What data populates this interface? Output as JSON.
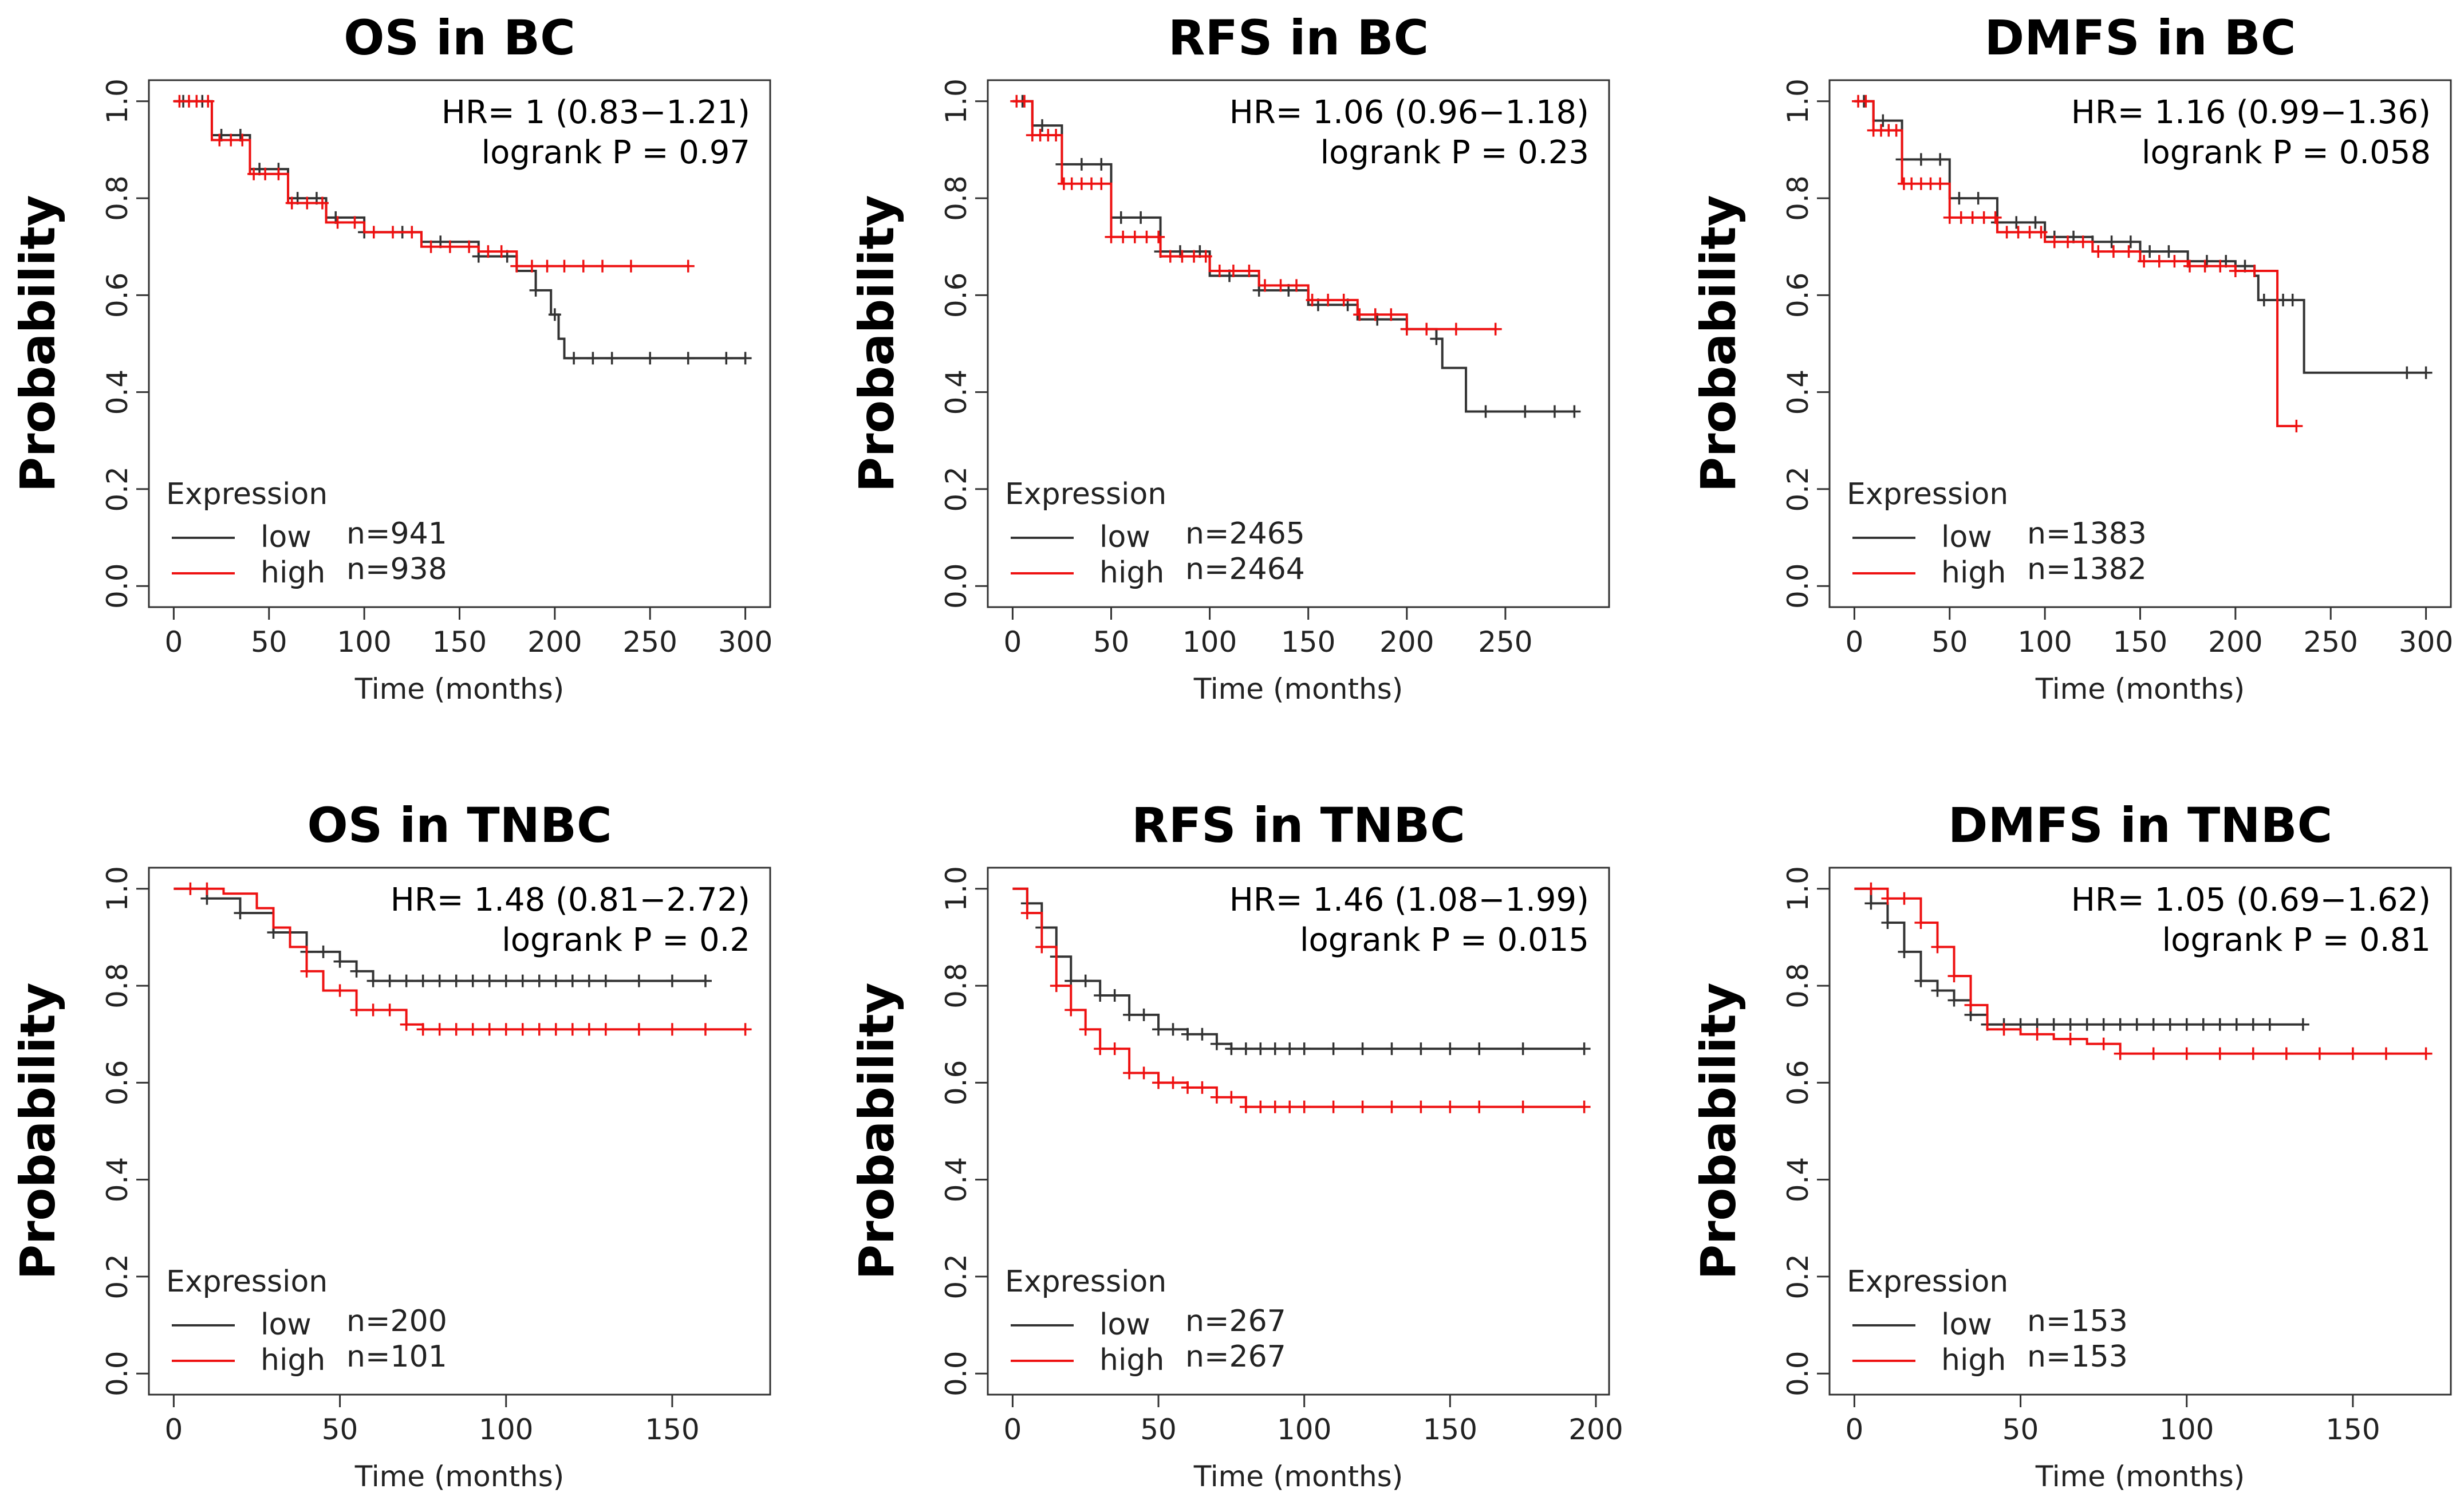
{
  "chart_data": [
    {
      "type": "line",
      "title": "OS in BC",
      "xlabel": "Time (months)",
      "ylabel": "Probability",
      "xlim": [
        0,
        300
      ],
      "ylim": [
        0,
        1
      ],
      "xticks": [
        0,
        50,
        100,
        150,
        200,
        250,
        300
      ],
      "xtick_labels": [
        "0",
        "50",
        "100",
        "150",
        "200",
        "250",
        "300"
      ],
      "yticks": [
        0,
        0.2,
        0.4,
        0.6,
        0.8,
        1.0
      ],
      "ytick_labels": [
        "0.0",
        "0.2",
        "0.4",
        "0.6",
        "0.8",
        "1.0"
      ],
      "hr_text": "HR= 1 (0.83−1.21)",
      "p_text": "logrank P = 0.97",
      "legend_title": "Expression",
      "series": [
        {
          "name": "low",
          "label": "low",
          "n_text": "n=941",
          "color": "#333333",
          "x": [
            0,
            20,
            40,
            60,
            80,
            100,
            130,
            160,
            180,
            190,
            198,
            202,
            205,
            300
          ],
          "y": [
            1.0,
            0.93,
            0.86,
            0.8,
            0.76,
            0.73,
            0.71,
            0.68,
            0.65,
            0.61,
            0.56,
            0.51,
            0.47,
            0.47
          ],
          "cens_x": [
            5,
            15,
            25,
            35,
            45,
            55,
            65,
            75,
            85,
            100,
            120,
            140,
            160,
            175,
            190,
            200,
            210,
            220,
            230,
            250,
            270,
            290,
            300
          ]
        },
        {
          "name": "high",
          "label": "high",
          "n_text": "n=938",
          "color": "#ee1111",
          "x": [
            0,
            20,
            40,
            60,
            80,
            100,
            130,
            160,
            180,
            270
          ],
          "y": [
            1.0,
            0.92,
            0.85,
            0.79,
            0.75,
            0.73,
            0.7,
            0.69,
            0.66,
            0.66
          ],
          "cens_x": [
            3,
            8,
            12,
            18,
            24,
            30,
            36,
            42,
            48,
            55,
            62,
            70,
            78,
            86,
            95,
            105,
            115,
            125,
            135,
            145,
            155,
            165,
            172,
            180,
            188,
            196,
            205,
            215,
            225,
            240,
            270
          ]
        }
      ]
    },
    {
      "type": "line",
      "title": "RFS in BC",
      "xlabel": "Time (months)",
      "ylabel": "Probability",
      "xlim": [
        0,
        290
      ],
      "ylim": [
        0,
        1
      ],
      "xticks": [
        0,
        50,
        100,
        150,
        200,
        250
      ],
      "xtick_labels": [
        "0",
        "50",
        "100",
        "150",
        "200",
        "250"
      ],
      "yticks": [
        0,
        0.2,
        0.4,
        0.6,
        0.8,
        1.0
      ],
      "ytick_labels": [
        "0.0",
        "0.2",
        "0.4",
        "0.6",
        "0.8",
        "1.0"
      ],
      "hr_text": "HR= 1.06 (0.96−1.18)",
      "p_text": "logrank P = 0.23",
      "legend_title": "Expression",
      "series": [
        {
          "name": "low",
          "label": "low",
          "n_text": "n=2465",
          "color": "#333333",
          "x": [
            0,
            10,
            25,
            50,
            75,
            100,
            125,
            150,
            175,
            200,
            215,
            218,
            228,
            230,
            285
          ],
          "y": [
            1.0,
            0.95,
            0.87,
            0.76,
            0.69,
            0.64,
            0.61,
            0.58,
            0.55,
            0.53,
            0.51,
            0.45,
            0.45,
            0.36,
            0.36
          ],
          "cens_x": [
            5,
            15,
            25,
            35,
            45,
            55,
            65,
            75,
            85,
            95,
            110,
            125,
            140,
            155,
            170,
            185,
            200,
            215,
            240,
            260,
            275,
            285
          ]
        },
        {
          "name": "high",
          "label": "high",
          "n_text": "n=2464",
          "color": "#ee1111",
          "x": [
            0,
            10,
            25,
            50,
            75,
            100,
            125,
            150,
            175,
            200,
            245
          ],
          "y": [
            1.0,
            0.93,
            0.83,
            0.72,
            0.68,
            0.65,
            0.62,
            0.59,
            0.56,
            0.53,
            0.53
          ],
          "cens_x": [
            2,
            6,
            10,
            14,
            18,
            22,
            26,
            30,
            35,
            40,
            45,
            50,
            56,
            62,
            68,
            74,
            80,
            86,
            92,
            98,
            105,
            112,
            120,
            128,
            136,
            144,
            152,
            160,
            168,
            176,
            184,
            192,
            200,
            210,
            225,
            245
          ]
        }
      ]
    },
    {
      "type": "line",
      "title": "DMFS in BC",
      "xlabel": "Time (months)",
      "ylabel": "Probability",
      "xlim": [
        0,
        300
      ],
      "ylim": [
        0,
        1
      ],
      "xticks": [
        0,
        50,
        100,
        150,
        200,
        250,
        300
      ],
      "xtick_labels": [
        "0",
        "50",
        "100",
        "150",
        "200",
        "250",
        "300"
      ],
      "yticks": [
        0,
        0.2,
        0.4,
        0.6,
        0.8,
        1.0
      ],
      "ytick_labels": [
        "0.0",
        "0.2",
        "0.4",
        "0.6",
        "0.8",
        "1.0"
      ],
      "hr_text": "HR= 1.16 (0.99−1.36)",
      "p_text": "logrank P = 0.058",
      "legend_title": "Expression",
      "series": [
        {
          "name": "low",
          "label": "low",
          "n_text": "n=1383",
          "color": "#333333",
          "x": [
            0,
            10,
            25,
            50,
            75,
            100,
            125,
            150,
            175,
            200,
            210,
            212,
            228,
            236,
            300
          ],
          "y": [
            1.0,
            0.96,
            0.88,
            0.8,
            0.75,
            0.72,
            0.71,
            0.69,
            0.67,
            0.66,
            0.64,
            0.59,
            0.59,
            0.44,
            0.44
          ],
          "cens_x": [
            5,
            15,
            25,
            35,
            45,
            55,
            65,
            75,
            85,
            95,
            105,
            115,
            125,
            135,
            145,
            155,
            165,
            175,
            185,
            195,
            205,
            215,
            225,
            230,
            290,
            300
          ]
        },
        {
          "name": "high",
          "label": "high",
          "n_text": "n=1382",
          "color": "#ee1111",
          "x": [
            0,
            10,
            25,
            50,
            75,
            100,
            125,
            150,
            175,
            200,
            220,
            222,
            232
          ],
          "y": [
            1.0,
            0.94,
            0.83,
            0.76,
            0.73,
            0.71,
            0.69,
            0.67,
            0.66,
            0.65,
            0.65,
            0.33,
            0.33
          ],
          "cens_x": [
            2,
            6,
            10,
            14,
            18,
            22,
            26,
            30,
            35,
            40,
            45,
            50,
            56,
            62,
            68,
            74,
            80,
            86,
            92,
            98,
            105,
            112,
            120,
            128,
            136,
            144,
            152,
            160,
            168,
            176,
            184,
            192,
            200,
            210,
            232
          ]
        }
      ]
    },
    {
      "type": "line",
      "title": "OS in TNBC",
      "xlabel": "Time (months)",
      "ylabel": "Probability",
      "xlim": [
        0,
        172
      ],
      "ylim": [
        0,
        1
      ],
      "xticks": [
        0,
        50,
        100,
        150
      ],
      "xtick_labels": [
        "0",
        "50",
        "100",
        "150"
      ],
      "yticks": [
        0,
        0.2,
        0.4,
        0.6,
        0.8,
        1.0
      ],
      "ytick_labels": [
        "0.0",
        "0.2",
        "0.4",
        "0.6",
        "0.8",
        "1.0"
      ],
      "hr_text": "HR= 1.48 (0.81−2.72)",
      "p_text": "logrank P = 0.2",
      "legend_title": "Expression",
      "series": [
        {
          "name": "low",
          "label": "low",
          "n_text": "n=200",
          "color": "#333333",
          "x": [
            0,
            10,
            20,
            30,
            40,
            50,
            55,
            60,
            160
          ],
          "y": [
            1.0,
            0.98,
            0.95,
            0.91,
            0.87,
            0.85,
            0.83,
            0.81,
            0.81
          ],
          "cens_x": [
            10,
            20,
            30,
            40,
            45,
            50,
            55,
            60,
            65,
            70,
            75,
            80,
            85,
            90,
            95,
            100,
            105,
            110,
            115,
            120,
            125,
            130,
            140,
            150,
            160
          ]
        },
        {
          "name": "high",
          "label": "high",
          "n_text": "n=101",
          "color": "#ee1111",
          "x": [
            0,
            15,
            25,
            30,
            35,
            40,
            45,
            55,
            70,
            75,
            172
          ],
          "y": [
            1.0,
            0.99,
            0.96,
            0.92,
            0.88,
            0.83,
            0.79,
            0.75,
            0.72,
            0.71,
            0.71
          ],
          "cens_x": [
            5,
            10,
            40,
            50,
            55,
            60,
            65,
            70,
            75,
            80,
            85,
            90,
            95,
            100,
            105,
            110,
            115,
            120,
            125,
            130,
            140,
            150,
            160,
            172
          ]
        }
      ]
    },
    {
      "type": "line",
      "title": "RFS in TNBC",
      "xlabel": "Time (months)",
      "ylabel": "Probability",
      "xlim": [
        0,
        196
      ],
      "ylim": [
        0,
        1
      ],
      "xticks": [
        0,
        50,
        100,
        150,
        200
      ],
      "xtick_labels": [
        "0",
        "50",
        "100",
        "150",
        "200"
      ],
      "yticks": [
        0,
        0.2,
        0.4,
        0.6,
        0.8,
        1.0
      ],
      "ytick_labels": [
        "0.0",
        "0.2",
        "0.4",
        "0.6",
        "0.8",
        "1.0"
      ],
      "hr_text": "HR= 1.46 (1.08−1.99)",
      "p_text": "logrank P = 0.015",
      "legend_title": "Expression",
      "series": [
        {
          "name": "low",
          "label": "low",
          "n_text": "n=267",
          "color": "#333333",
          "x": [
            0,
            5,
            10,
            15,
            20,
            30,
            40,
            50,
            60,
            70,
            75,
            196
          ],
          "y": [
            1.0,
            0.97,
            0.92,
            0.86,
            0.81,
            0.78,
            0.74,
            0.71,
            0.7,
            0.68,
            0.67,
            0.67
          ],
          "cens_x": [
            5,
            10,
            15,
            20,
            25,
            30,
            35,
            40,
            45,
            50,
            55,
            60,
            65,
            70,
            75,
            80,
            85,
            90,
            95,
            100,
            110,
            120,
            130,
            140,
            150,
            160,
            175,
            196
          ]
        },
        {
          "name": "high",
          "label": "high",
          "n_text": "n=267",
          "color": "#ee1111",
          "x": [
            0,
            5,
            10,
            15,
            20,
            25,
            30,
            40,
            50,
            60,
            70,
            80,
            196
          ],
          "y": [
            1.0,
            0.95,
            0.88,
            0.8,
            0.75,
            0.71,
            0.67,
            0.62,
            0.6,
            0.59,
            0.57,
            0.55,
            0.55
          ],
          "cens_x": [
            5,
            10,
            15,
            20,
            25,
            30,
            35,
            40,
            45,
            50,
            55,
            60,
            65,
            70,
            75,
            80,
            85,
            90,
            95,
            100,
            110,
            120,
            130,
            140,
            150,
            160,
            175,
            196
          ]
        }
      ]
    },
    {
      "type": "line",
      "title": "DMFS in TNBC",
      "xlabel": "Time (months)",
      "ylabel": "Probability",
      "xlim": [
        0,
        172
      ],
      "ylim": [
        0,
        1
      ],
      "xticks": [
        0,
        50,
        100,
        150
      ],
      "xtick_labels": [
        "0",
        "50",
        "100",
        "150"
      ],
      "yticks": [
        0,
        0.2,
        0.4,
        0.6,
        0.8,
        1.0
      ],
      "ytick_labels": [
        "0.0",
        "0.2",
        "0.4",
        "0.6",
        "0.8",
        "1.0"
      ],
      "hr_text": "HR= 1.05 (0.69−1.62)",
      "p_text": "logrank P = 0.81",
      "legend_title": "Expression",
      "series": [
        {
          "name": "low",
          "label": "low",
          "n_text": "n=153",
          "color": "#333333",
          "x": [
            0,
            5,
            10,
            15,
            20,
            25,
            30,
            35,
            40,
            135
          ],
          "y": [
            1.0,
            0.97,
            0.93,
            0.87,
            0.81,
            0.79,
            0.77,
            0.74,
            0.72,
            0.72
          ],
          "cens_x": [
            5,
            10,
            15,
            20,
            25,
            30,
            35,
            40,
            45,
            50,
            55,
            60,
            65,
            70,
            75,
            80,
            85,
            90,
            95,
            100,
            105,
            110,
            115,
            120,
            125,
            135
          ]
        },
        {
          "name": "high",
          "label": "high",
          "n_text": "n=153",
          "color": "#ee1111",
          "x": [
            0,
            10,
            20,
            25,
            30,
            35,
            40,
            50,
            60,
            70,
            80,
            172
          ],
          "y": [
            1.0,
            0.98,
            0.93,
            0.88,
            0.82,
            0.76,
            0.71,
            0.7,
            0.69,
            0.68,
            0.66,
            0.66
          ],
          "cens_x": [
            5,
            10,
            15,
            20,
            25,
            30,
            35,
            45,
            55,
            65,
            75,
            80,
            90,
            100,
            110,
            120,
            130,
            140,
            150,
            160,
            172
          ]
        }
      ]
    }
  ]
}
